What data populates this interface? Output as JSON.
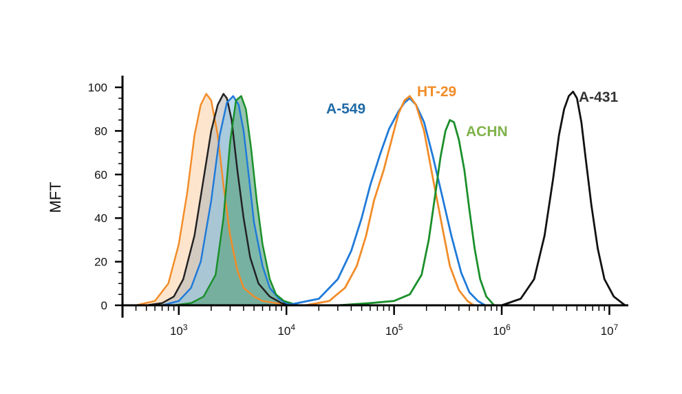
{
  "chart_data": {
    "type": "area",
    "title": "",
    "xlabel": "",
    "ylabel": "MFT",
    "x_scale": "log",
    "xlim": [
      300,
      15000000
    ],
    "ylim": [
      0,
      100
    ],
    "y_ticks": [
      0,
      20,
      40,
      60,
      80,
      100
    ],
    "x_ticks": [
      {
        "value": 1000,
        "base": "10",
        "exp": "3"
      },
      {
        "value": 10000,
        "base": "10",
        "exp": "4"
      },
      {
        "value": 100000,
        "base": "10",
        "exp": "5"
      },
      {
        "value": 1000000,
        "base": "10",
        "exp": "6"
      },
      {
        "value": 10000000,
        "base": "10",
        "exp": "7"
      }
    ],
    "grid": false,
    "controls": [
      {
        "color": "#f28c28",
        "fill": "#fbd3ab",
        "x": [
          400,
          600,
          800,
          1000,
          1200,
          1400,
          1600,
          1800,
          2000,
          2300,
          2600,
          3000,
          3500,
          4000,
          5000,
          6000,
          8000,
          10000
        ],
        "y": [
          0,
          2,
          10,
          28,
          52,
          78,
          92,
          97,
          94,
          78,
          55,
          32,
          16,
          8,
          4,
          2,
          1,
          0
        ]
      },
      {
        "color": "#222222",
        "fill": "#b7b7b7",
        "x": [
          500,
          700,
          900,
          1100,
          1400,
          1700,
          2000,
          2300,
          2600,
          2800,
          3100,
          3500,
          4000,
          4600,
          5500,
          7000,
          9000,
          12000
        ],
        "y": [
          0,
          1,
          4,
          12,
          32,
          58,
          80,
          92,
          97,
          95,
          85,
          62,
          40,
          22,
          10,
          4,
          1,
          0
        ]
      },
      {
        "color": "#1f7ad9",
        "fill": "#8ec3e2",
        "x": [
          700,
          1000,
          1300,
          1600,
          2000,
          2400,
          2800,
          3200,
          3600,
          4000,
          4500,
          5000,
          6000,
          7000,
          8500,
          10000,
          12000
        ],
        "y": [
          0,
          2,
          8,
          20,
          48,
          78,
          93,
          96,
          92,
          80,
          58,
          38,
          18,
          8,
          3,
          1,
          0
        ]
      },
      {
        "color": "#1a8f2a",
        "fill": "#55a07a",
        "x": [
          900,
          1300,
          1700,
          2200,
          2600,
          3000,
          3400,
          3800,
          4200,
          4700,
          5300,
          6000,
          7000,
          8000,
          9500,
          11000,
          13000
        ],
        "y": [
          0,
          1,
          4,
          14,
          40,
          75,
          94,
          96,
          90,
          72,
          48,
          28,
          12,
          5,
          2,
          1,
          0
        ]
      }
    ],
    "series": [
      {
        "name": "A-549",
        "color": "#1f7ad9",
        "x": [
          10000,
          20000,
          30000,
          40000,
          50000,
          60000,
          75000,
          90000,
          110000,
          125000,
          140000,
          160000,
          190000,
          230000,
          280000,
          340000,
          420000,
          500000,
          600000,
          700000
        ],
        "y": [
          0,
          3,
          12,
          25,
          40,
          55,
          70,
          81,
          89,
          93,
          95,
          92,
          84,
          68,
          50,
          32,
          15,
          6,
          2,
          0
        ]
      },
      {
        "name": "HT-29",
        "color": "#f28c28",
        "x": [
          15000,
          25000,
          35000,
          45000,
          55000,
          65000,
          80000,
          95000,
          110000,
          125000,
          140000,
          160000,
          190000,
          230000,
          280000,
          330000,
          400000,
          480000,
          550000
        ],
        "y": [
          0,
          2,
          8,
          18,
          32,
          48,
          62,
          76,
          88,
          94,
          96,
          92,
          80,
          58,
          36,
          18,
          7,
          2,
          0
        ]
      },
      {
        "name": "ACHN",
        "color": "#1a8f2a",
        "x": [
          30000,
          60000,
          100000,
          140000,
          180000,
          210000,
          240000,
          270000,
          300000,
          330000,
          360000,
          400000,
          450000,
          500000,
          560000,
          630000,
          720000,
          850000
        ],
        "y": [
          0,
          1,
          2,
          5,
          14,
          30,
          50,
          68,
          80,
          85,
          84,
          76,
          62,
          44,
          26,
          12,
          4,
          0
        ]
      },
      {
        "name": "A-431",
        "color": "#111111",
        "x": [
          1000000,
          1500000,
          2000000,
          2500000,
          3000000,
          3400000,
          3800000,
          4200000,
          4600000,
          5000000,
          5500000,
          6000000,
          6800000,
          7800000,
          9000000,
          11000000,
          14000000
        ],
        "y": [
          0,
          3,
          12,
          32,
          58,
          78,
          90,
          96,
          98,
          95,
          84,
          68,
          46,
          26,
          12,
          4,
          0
        ]
      }
    ],
    "labels": [
      {
        "text": "A-549",
        "color": "#1f6aa8"
      },
      {
        "text": "HT-29",
        "color": "#f28c28"
      },
      {
        "text": "ACHN",
        "color": "#7fb24a"
      },
      {
        "text": "A-431",
        "color": "#333333"
      }
    ]
  }
}
